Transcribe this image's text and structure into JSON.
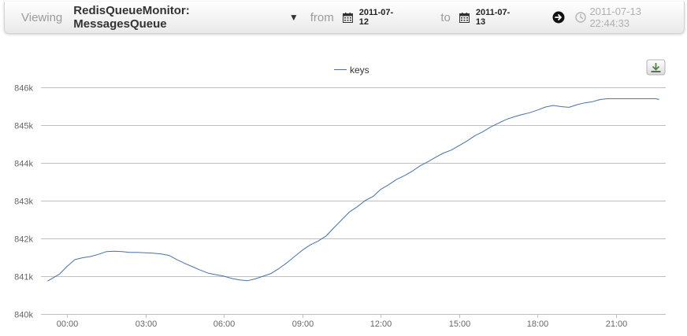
{
  "toolbar": {
    "viewing_label": "Viewing",
    "title": "RedisQueueMonitor: MessagesQueue",
    "from_label": "from",
    "from_date": "2011-07-12",
    "to_label": "to",
    "to_date": "2011-07-13",
    "updated": "2011-07-13 22:44:33",
    "icons": {
      "dropdown": "caret-down-icon",
      "from_calendar": "calendar-icon",
      "to_calendar": "calendar-icon",
      "go": "arrow-right-circle-icon",
      "updated": "clock-icon"
    }
  },
  "chart": {
    "export_icon": "download-icon"
  },
  "colors": {
    "series": "#4572A7",
    "grid": "#c0c0c0",
    "axis_text": "#666666"
  },
  "chart_data": {
    "type": "line",
    "title": "",
    "legend": {
      "position": "top-center",
      "entries": [
        "keys"
      ]
    },
    "grid": true,
    "ylim": [
      840000,
      846000
    ],
    "yticks": [
      840000,
      841000,
      842000,
      843000,
      844000,
      845000,
      846000
    ],
    "ytick_labels": [
      "840k",
      "841k",
      "842k",
      "843k",
      "844k",
      "845k",
      "846k"
    ],
    "xlim": [
      -1.0,
      22.9
    ],
    "xticks": [
      0,
      3,
      6,
      9,
      12,
      15,
      18,
      21
    ],
    "xtick_labels": [
      "00:00",
      "03:00",
      "06:00",
      "09:00",
      "12:00",
      "15:00",
      "18:00",
      "21:00"
    ],
    "series": [
      {
        "name": "keys",
        "x": [
          -0.75,
          -0.3,
          0.0,
          0.3,
          0.6,
          0.9,
          1.2,
          1.5,
          1.8,
          2.1,
          2.4,
          2.7,
          3.0,
          3.3,
          3.6,
          3.9,
          4.2,
          4.5,
          4.8,
          5.1,
          5.4,
          5.7,
          6.0,
          6.3,
          6.6,
          6.9,
          7.2,
          7.5,
          7.8,
          8.1,
          8.4,
          8.7,
          9.0,
          9.3,
          9.6,
          9.9,
          10.2,
          10.5,
          10.8,
          11.1,
          11.4,
          11.7,
          12.0,
          12.3,
          12.6,
          12.9,
          13.2,
          13.5,
          13.8,
          14.1,
          14.4,
          14.7,
          15.0,
          15.3,
          15.6,
          15.9,
          16.2,
          16.5,
          16.8,
          17.1,
          17.4,
          17.7,
          18.0,
          18.3,
          18.6,
          18.9,
          19.2,
          19.5,
          19.8,
          20.1,
          20.4,
          20.7,
          21.0,
          21.3,
          21.6,
          21.9,
          22.2,
          22.5,
          22.65
        ],
        "values": [
          840870,
          841050,
          841260,
          841440,
          841490,
          841520,
          841580,
          841650,
          841660,
          841650,
          841630,
          841630,
          841620,
          841610,
          841590,
          841550,
          841440,
          841340,
          841250,
          841160,
          841080,
          841040,
          841000,
          840940,
          840900,
          840880,
          840930,
          841000,
          841070,
          841200,
          841350,
          841520,
          841690,
          841830,
          841930,
          842060,
          842280,
          842490,
          842700,
          842840,
          843000,
          843110,
          843300,
          843420,
          843560,
          843660,
          843780,
          843920,
          844030,
          844150,
          844260,
          844340,
          844460,
          844580,
          844720,
          844820,
          844950,
          845050,
          845150,
          845220,
          845280,
          845330,
          845400,
          845480,
          845520,
          845490,
          845470,
          845540,
          845590,
          845620,
          845680,
          845700,
          845700,
          845700,
          845700,
          845700,
          845700,
          845700,
          845680
        ]
      }
    ]
  }
}
